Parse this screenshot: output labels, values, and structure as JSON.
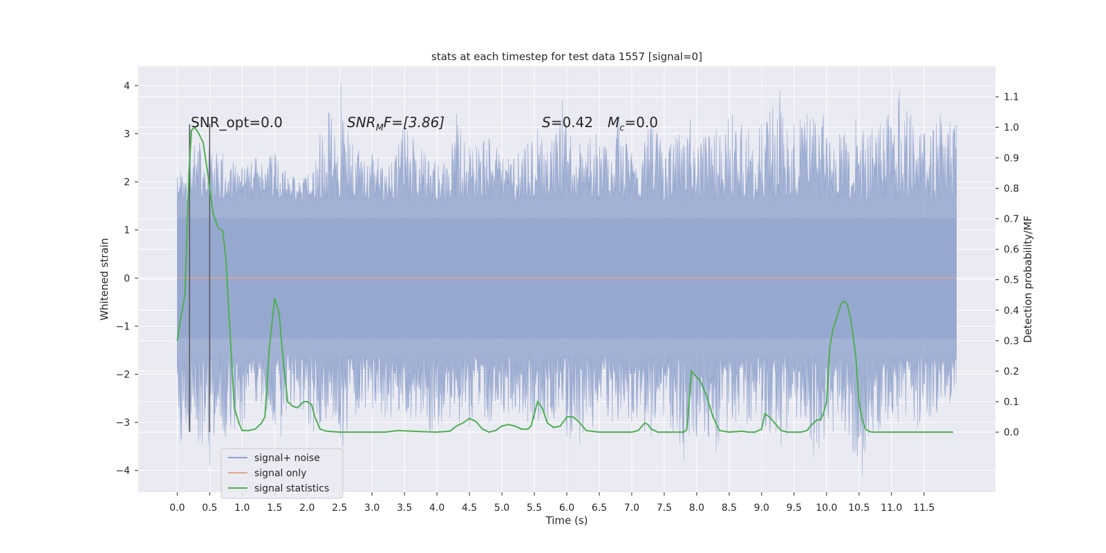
{
  "chart_data": {
    "type": "line",
    "title": "stats at each timestep for test data 1557 [signal=0]",
    "xlabel": "Time (s)",
    "ylabel": "Whitened strain",
    "y2label": "Detection probability/MF",
    "xlim": [
      -0.6,
      12.6
    ],
    "ylim": [
      -4.45,
      4.4
    ],
    "y2lim": [
      -0.197,
      1.2
    ],
    "xticks": [
      0.0,
      0.5,
      1.0,
      1.5,
      2.0,
      2.5,
      3.0,
      3.5,
      4.0,
      4.5,
      5.0,
      5.5,
      6.0,
      6.5,
      7.0,
      7.5,
      8.0,
      8.5,
      9.0,
      9.5,
      10.0,
      10.5,
      11.0,
      11.5
    ],
    "xtick_labels": [
      "0.0",
      "0.5",
      "1.0",
      "1.5",
      "2.0",
      "2.5",
      "3.0",
      "3.5",
      "4.0",
      "4.5",
      "5.0",
      "5.5",
      "6.0",
      "6.5",
      "7.0",
      "7.5",
      "8.0",
      "8.5",
      "9.0",
      "9.5",
      "10.0",
      "10.5",
      "11.0",
      "11.5"
    ],
    "yticks": [
      4,
      3,
      2,
      1,
      0,
      -1,
      -2,
      -3,
      -4
    ],
    "ytick_labels": [
      "4",
      "3",
      "2",
      "1",
      "0",
      "−1",
      "−2",
      "−3",
      "−4"
    ],
    "y2ticks": [
      1.1,
      1.0,
      0.9,
      0.8,
      0.7,
      0.6,
      0.5,
      0.4,
      0.3,
      0.2,
      0.1,
      0.0
    ],
    "y2tick_labels": [
      "1.1",
      "1.0",
      "0.9",
      "0.8",
      "0.7",
      "0.6",
      "0.5",
      "0.4",
      "0.3",
      "0.2",
      "0.1",
      "0.0"
    ],
    "grid": true,
    "legend_position": "lower-left",
    "annotations": {
      "snr_opt": "SNR_opt=0.0",
      "snr_mf_main": "SNR",
      "snr_mf_sub": "M",
      "snr_mf_rest": "F=[3.86]",
      "s_main": "S",
      "s_rest": "=0.42",
      "mc_main": "M",
      "mc_sub": "c",
      "mc_rest": "=0.0"
    },
    "vertical_markers_x": [
      0.19,
      0.5
    ],
    "vertical_markers_range": [
      -3.2,
      3.2
    ],
    "noise": {
      "x_range": [
        0.0,
        12.0
      ],
      "inner_band": [
        -1.25,
        1.25
      ],
      "lower_floor": -2.0,
      "upper_peaks": [
        [
          0.0,
          2.1
        ],
        [
          0.05,
          2.2
        ],
        [
          0.1,
          2.0
        ],
        [
          0.2,
          3.1
        ],
        [
          0.5,
          2.9
        ],
        [
          0.7,
          2.6
        ],
        [
          1.0,
          2.3
        ],
        [
          1.2,
          2.5
        ],
        [
          1.5,
          2.6
        ],
        [
          1.8,
          2.1
        ],
        [
          2.1,
          2.2
        ],
        [
          2.2,
          3.0
        ],
        [
          2.52,
          4.05
        ],
        [
          2.7,
          2.8
        ],
        [
          3.0,
          2.6
        ],
        [
          3.3,
          2.4
        ],
        [
          3.5,
          3.2
        ],
        [
          3.8,
          2.6
        ],
        [
          4.1,
          2.4
        ],
        [
          4.3,
          3.4
        ],
        [
          4.5,
          2.7
        ],
        [
          4.8,
          2.9
        ],
        [
          5.1,
          2.5
        ],
        [
          5.4,
          2.8
        ],
        [
          5.55,
          3.1
        ],
        [
          5.7,
          2.6
        ],
        [
          5.93,
          3.7
        ],
        [
          6.2,
          2.8
        ],
        [
          6.45,
          3.0
        ],
        [
          6.6,
          2.7
        ],
        [
          6.8,
          3.3
        ],
        [
          7.0,
          2.6
        ],
        [
          7.3,
          3.2
        ],
        [
          7.6,
          2.8
        ],
        [
          7.9,
          3.3
        ],
        [
          8.1,
          2.9
        ],
        [
          8.3,
          3.1
        ],
        [
          8.55,
          3.4
        ],
        [
          8.8,
          3.1
        ],
        [
          9.0,
          3.2
        ],
        [
          9.28,
          3.9
        ],
        [
          9.5,
          3.2
        ],
        [
          9.7,
          3.4
        ],
        [
          9.95,
          3.4
        ],
        [
          10.2,
          3.0
        ],
        [
          10.45,
          3.3
        ],
        [
          10.7,
          3.1
        ],
        [
          10.95,
          3.4
        ],
        [
          11.12,
          3.9
        ],
        [
          11.3,
          3.4
        ],
        [
          11.5,
          3.0
        ],
        [
          11.75,
          3.4
        ],
        [
          11.9,
          3.25
        ],
        [
          12.0,
          3.2
        ]
      ],
      "lower_troughs": [
        [
          0.0,
          -2.0
        ],
        [
          0.05,
          -3.4
        ],
        [
          0.2,
          -3.2
        ],
        [
          0.5,
          -3.9
        ],
        [
          0.75,
          -3.3
        ],
        [
          1.0,
          -3.1
        ],
        [
          1.3,
          -2.6
        ],
        [
          1.6,
          -3.3
        ],
        [
          1.8,
          -2.6
        ],
        [
          2.1,
          -3.2
        ],
        [
          2.4,
          -2.9
        ],
        [
          2.55,
          -3.5
        ],
        [
          2.8,
          -2.7
        ],
        [
          3.2,
          -2.9
        ],
        [
          3.6,
          -2.9
        ],
        [
          3.9,
          -3.2
        ],
        [
          4.2,
          -2.9
        ],
        [
          4.5,
          -3.1
        ],
        [
          4.8,
          -3.0
        ],
        [
          5.1,
          -2.8
        ],
        [
          5.4,
          -3.0
        ],
        [
          5.7,
          -3.0
        ],
        [
          6.0,
          -3.3
        ],
        [
          6.2,
          -3.45
        ],
        [
          6.4,
          -3.1
        ],
        [
          6.7,
          -3.0
        ],
        [
          7.0,
          -3.0
        ],
        [
          7.3,
          -3.3
        ],
        [
          7.6,
          -3.1
        ],
        [
          7.8,
          -3.8
        ],
        [
          8.0,
          -3.3
        ],
        [
          8.3,
          -3.6
        ],
        [
          8.6,
          -3.0
        ],
        [
          9.0,
          -3.2
        ],
        [
          9.3,
          -3.5
        ],
        [
          9.6,
          -2.9
        ],
        [
          9.8,
          -3.7
        ],
        [
          10.1,
          -3.2
        ],
        [
          10.4,
          -3.6
        ],
        [
          10.55,
          -4.1
        ],
        [
          10.8,
          -3.2
        ],
        [
          11.1,
          -3.0
        ],
        [
          11.4,
          -3.1
        ],
        [
          11.7,
          -2.8
        ],
        [
          11.9,
          -2.6
        ],
        [
          12.0,
          -2.2
        ]
      ]
    },
    "series": [
      {
        "name": "signal+ noise",
        "color": "#8da0cb"
      },
      {
        "name": "signal only",
        "color": "#e5a48a",
        "x": [
          0.0,
          12.0
        ],
        "values": [
          0.0,
          0.0
        ]
      },
      {
        "name": "signal statistics",
        "color": "#4caf50",
        "axis": "right",
        "x": [
          0.0,
          0.05,
          0.12,
          0.18,
          0.22,
          0.27,
          0.33,
          0.4,
          0.47,
          0.55,
          0.63,
          0.7,
          0.75,
          0.82,
          0.88,
          0.95,
          1.0,
          1.1,
          1.2,
          1.3,
          1.35,
          1.42,
          1.5,
          1.57,
          1.63,
          1.7,
          1.78,
          1.85,
          1.95,
          2.0,
          2.07,
          2.12,
          2.2,
          2.3,
          2.5,
          3.0,
          3.2,
          3.4,
          3.6,
          4.0,
          4.2,
          4.3,
          4.4,
          4.5,
          4.6,
          4.7,
          4.8,
          4.9,
          5.0,
          5.1,
          5.2,
          5.3,
          5.4,
          5.45,
          5.55,
          5.62,
          5.7,
          5.8,
          5.9,
          6.0,
          6.1,
          6.2,
          6.3,
          6.5,
          7.0,
          7.1,
          7.2,
          7.25,
          7.3,
          7.4,
          7.6,
          7.8,
          7.85,
          7.92,
          8.0,
          8.05,
          8.15,
          8.25,
          8.35,
          8.5,
          8.7,
          8.8,
          8.9,
          9.0,
          9.05,
          9.12,
          9.2,
          9.3,
          9.4,
          9.5,
          9.6,
          9.7,
          9.75,
          9.8,
          9.85,
          9.9,
          9.95,
          10.0,
          10.05,
          10.1,
          10.15,
          10.22,
          10.27,
          10.32,
          10.38,
          10.45,
          10.5,
          10.55,
          10.6,
          10.65,
          10.7,
          11.0,
          11.5,
          11.95
        ],
        "values": [
          0.3,
          0.37,
          0.45,
          0.85,
          0.99,
          1.0,
          0.98,
          0.95,
          0.85,
          0.72,
          0.67,
          0.66,
          0.57,
          0.3,
          0.08,
          0.03,
          0.005,
          0.005,
          0.01,
          0.03,
          0.05,
          0.28,
          0.44,
          0.39,
          0.24,
          0.1,
          0.085,
          0.08,
          0.1,
          0.1,
          0.09,
          0.05,
          0.01,
          0.003,
          0.0,
          0.0,
          0.0,
          0.005,
          0.003,
          0.0,
          0.003,
          0.02,
          0.03,
          0.045,
          0.035,
          0.01,
          0.0,
          0.005,
          0.02,
          0.025,
          0.02,
          0.01,
          0.01,
          0.02,
          0.1,
          0.08,
          0.03,
          0.015,
          0.02,
          0.05,
          0.05,
          0.03,
          0.005,
          0.0,
          0.0,
          0.005,
          0.03,
          0.025,
          0.01,
          0.0,
          0.0,
          0.0,
          0.01,
          0.2,
          0.18,
          0.17,
          0.12,
          0.05,
          0.005,
          0.0,
          0.003,
          0.0,
          0.0,
          0.01,
          0.06,
          0.05,
          0.03,
          0.005,
          0.0,
          0.0,
          0.0,
          0.005,
          0.02,
          0.03,
          0.04,
          0.04,
          0.06,
          0.1,
          0.28,
          0.34,
          0.37,
          0.42,
          0.43,
          0.42,
          0.36,
          0.25,
          0.1,
          0.04,
          0.01,
          0.003,
          0.0,
          0.0,
          0.0,
          0.0
        ]
      }
    ],
    "legend": [
      {
        "label": "signal+ noise",
        "color": "#8da0cb"
      },
      {
        "label": "signal only",
        "color": "#e5a48a"
      },
      {
        "label": "signal statistics",
        "color": "#4caf50"
      }
    ]
  },
  "colors": {
    "plot_background": "#eaeaf2",
    "grid": "#ffffff",
    "noise_fill": "#96a8cf",
    "marker_line": "#555555"
  }
}
